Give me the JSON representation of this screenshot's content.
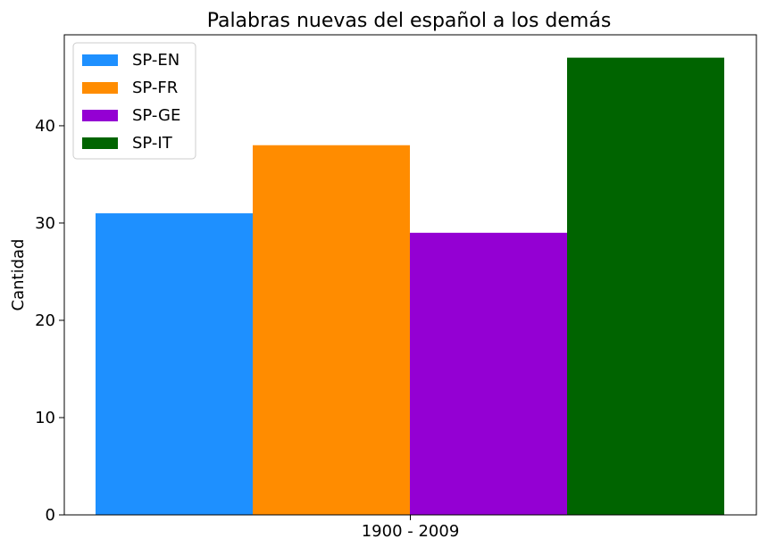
{
  "chart_data": {
    "type": "bar",
    "title": "Palabras nuevas del español a los demás",
    "xlabel": "",
    "ylabel": "Cantidad",
    "categories": [
      "1900 - 2009"
    ],
    "series": [
      {
        "name": "SP-EN",
        "values": [
          31
        ],
        "color": "#1e90ff"
      },
      {
        "name": "SP-FR",
        "values": [
          38
        ],
        "color": "#ff8c00"
      },
      {
        "name": "SP-GE",
        "values": [
          29
        ],
        "color": "#9400d3"
      },
      {
        "name": "SP-IT",
        "values": [
          47
        ],
        "color": "#006400"
      }
    ],
    "ylim": [
      0,
      49.35
    ],
    "yticks": [
      "0",
      "10",
      "20",
      "30",
      "40"
    ],
    "grid": false,
    "legend_position": "top-left"
  }
}
